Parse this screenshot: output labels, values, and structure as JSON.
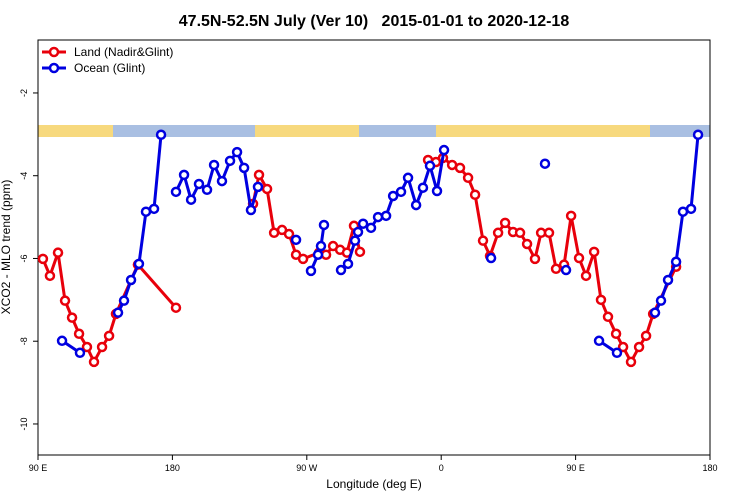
{
  "chart_data": {
    "type": "line",
    "title": "47.5N-52.5N July (Ver 10)   2015-01-01 to 2020-12-18",
    "x_label": "Longitude (deg E)",
    "y_label": "XCO2 - MLO trend (ppm)",
    "xlim": [
      90,
      540
    ],
    "ylim": [
      -10.75,
      -0.72
    ],
    "xticks": [
      {
        "value": 90,
        "label": "90 E"
      },
      {
        "value": 180,
        "label": "180"
      },
      {
        "value": 270,
        "label": "90 W"
      },
      {
        "value": 360,
        "label": "0"
      },
      {
        "value": 450,
        "label": "90 E"
      },
      {
        "value": 540,
        "label": "180"
      }
    ],
    "yticks": [
      -2,
      -4,
      -6,
      -8,
      -10
    ],
    "legend": "top-left",
    "series": [
      {
        "name": "Land (Nadir&Glint)",
        "color": "#e8000b",
        "x": [
          93.3,
          98.0,
          103.4,
          108.1,
          112.8,
          117.5,
          122.8,
          127.5,
          132.9,
          137.6,
          142.2,
          156.9,
          182.4,
          null,
          234.0,
          238.0,
          243.4,
          248.1,
          253.4,
          258.1,
          262.8,
          267.5,
          278.2,
          282.9,
          287.6,
          292.3,
          296.9,
          301.6,
          305.6,
          null,
          351.2,
          356.5,
          361.2,
          367.3,
          372.6,
          378.0,
          382.7,
          388.0,
          392.7,
          398.1,
          402.8,
          408.1,
          412.8,
          417.5,
          422.8,
          426.9,
          432.2,
          436.9,
          442.3,
          447.0,
          452.3,
          457.0,
          462.4,
          467.0,
          471.7,
          477.1,
          481.8,
          487.1,
          492.5,
          497.2,
          501.9,
          517.3
        ],
        "values": [
          -6.01,
          -6.42,
          -5.86,
          -7.02,
          -7.43,
          -7.82,
          -8.14,
          -8.5,
          -8.14,
          -7.87,
          -7.34,
          -6.15,
          -7.19,
          null,
          -4.68,
          -3.98,
          -4.32,
          -5.38,
          -5.31,
          -5.41,
          -5.91,
          -6.01,
          -5.86,
          -5.91,
          -5.7,
          -5.79,
          -5.86,
          -5.21,
          -5.84,
          null,
          -3.62,
          -3.67,
          -3.57,
          -3.74,
          -3.81,
          -4.05,
          -4.46,
          -5.57,
          -5.94,
          -5.38,
          -5.14,
          -5.36,
          -5.38,
          -5.65,
          -6.01,
          -5.38,
          -5.38,
          -6.25,
          -6.15,
          -4.97,
          -5.99,
          -6.42,
          -5.84,
          -7.0,
          -7.41,
          -7.82,
          -8.14,
          -8.5,
          -8.14,
          -7.87,
          -7.34,
          -6.2
        ]
      },
      {
        "name": "Ocean (Glint)",
        "color": "#0000e0",
        "x": [
          106.1,
          118.1,
          null,
          143.6,
          147.6,
          152.3,
          157.6,
          162.3,
          167.7,
          172.4,
          null,
          182.4,
          187.8,
          192.5,
          197.8,
          203.2,
          207.9,
          213.2,
          218.6,
          223.3,
          228.0,
          232.6,
          237.3,
          null,
          262.8,
          null,
          272.8,
          277.5,
          279.5,
          281.5,
          null,
          292.9,
          297.6,
          302.3,
          304.3,
          307.7,
          313.0,
          317.7,
          323.1,
          327.8,
          333.1,
          337.8,
          343.2,
          347.8,
          352.5,
          357.2,
          361.9,
          null,
          393.4,
          null,
          429.5,
          null,
          443.6,
          null,
          465.7,
          477.7,
          null,
          503.2,
          507.2,
          511.9,
          517.3,
          521.9,
          527.3,
          532.0
        ],
        "values": [
          -7.99,
          -8.28,
          null,
          -7.31,
          -7.02,
          -6.52,
          -6.13,
          -4.87,
          -4.8,
          -3.01,
          null,
          -4.39,
          -3.98,
          -4.58,
          -4.2,
          -4.34,
          -3.74,
          -4.13,
          -3.64,
          -3.43,
          -3.81,
          -4.83,
          -4.27,
          null,
          -5.55,
          null,
          -6.3,
          -5.91,
          -5.7,
          -5.19,
          null,
          -6.28,
          -6.13,
          -5.57,
          -5.36,
          -5.16,
          -5.26,
          -5.0,
          -4.97,
          -4.49,
          -4.39,
          -4.05,
          -4.71,
          -4.29,
          -3.76,
          -4.37,
          -3.38,
          null,
          -5.99,
          null,
          -3.71,
          null,
          -6.28,
          null,
          -7.99,
          -8.28,
          null,
          -7.31,
          -7.02,
          -6.52,
          -6.08,
          -4.87,
          -4.8,
          -3.01
        ]
      }
    ]
  }
}
